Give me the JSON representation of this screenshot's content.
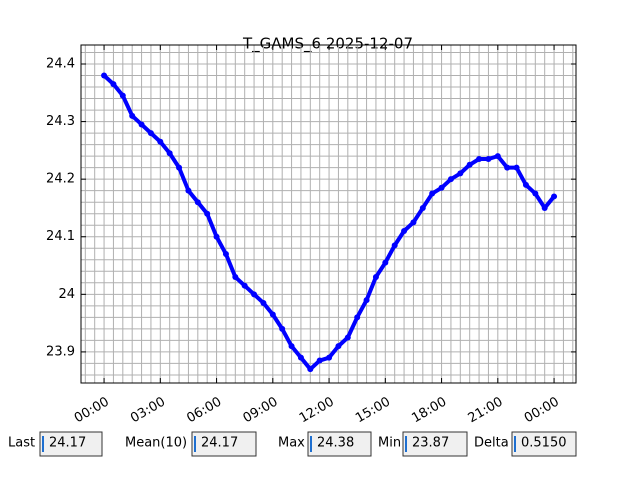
{
  "chart_data": {
    "type": "line",
    "title": "T_GAMS_6 2025-12-07",
    "x": [
      0,
      0.5,
      1,
      1.5,
      2,
      2.5,
      3,
      3.5,
      4,
      4.5,
      5,
      5.5,
      6,
      6.5,
      7,
      7.5,
      8,
      8.5,
      9,
      9.5,
      10,
      10.5,
      11,
      11.5,
      12,
      12.5,
      13,
      13.5,
      14,
      14.5,
      15,
      15.5,
      16,
      16.5,
      17,
      17.5,
      18,
      18.5,
      19,
      19.5,
      20,
      20.5,
      21,
      21.5,
      22,
      22.5,
      23,
      23.5,
      24
    ],
    "series": [
      {
        "color": "#0000ff",
        "values": [
          24.38,
          24.365,
          24.345,
          24.31,
          24.295,
          24.28,
          24.265,
          24.245,
          24.22,
          24.18,
          24.16,
          24.14,
          24.1,
          24.07,
          24.03,
          24.015,
          24.0,
          23.985,
          23.965,
          23.94,
          23.91,
          23.89,
          23.87,
          23.885,
          23.89,
          23.91,
          23.925,
          23.96,
          23.99,
          24.03,
          24.055,
          24.085,
          24.11,
          24.125,
          24.15,
          24.175,
          24.185,
          24.2,
          24.21,
          24.225,
          24.235,
          24.235,
          24.24,
          24.22,
          24.22,
          24.19,
          24.175,
          24.15,
          24.17
        ]
      }
    ],
    "xlim": [
      -1.23,
      25.17
    ],
    "xticks": [
      {
        "value": 0,
        "label": "00:00"
      },
      {
        "value": 3,
        "label": "03:00"
      },
      {
        "value": 6,
        "label": "06:00"
      },
      {
        "value": 9,
        "label": "09:00"
      },
      {
        "value": 12,
        "label": "12:00"
      },
      {
        "value": 15,
        "label": "15:00"
      },
      {
        "value": 18,
        "label": "18:00"
      },
      {
        "value": 21,
        "label": "21:00"
      },
      {
        "value": 24,
        "label": "00:00"
      }
    ],
    "xminorticks": [
      -1,
      -0.5,
      0,
      0.5,
      1,
      1.5,
      2,
      2.5,
      3,
      3.5,
      4,
      4.5,
      5,
      5.5,
      6,
      6.5,
      7,
      7.5,
      8,
      8.5,
      9,
      9.5,
      10,
      10.5,
      11,
      11.5,
      12,
      12.5,
      13,
      13.5,
      14,
      14.5,
      15,
      15.5,
      16,
      16.5,
      17,
      17.5,
      18,
      18.5,
      19,
      19.5,
      20,
      20.5,
      21,
      21.5,
      22,
      22.5,
      23,
      23.5,
      24,
      24.5,
      25
    ],
    "ylim": [
      23.846,
      24.433
    ],
    "yticks": [
      23.9,
      24.0,
      24.1,
      24.2,
      24.3,
      24.4
    ],
    "yminorticks": [
      23.86,
      23.88,
      23.9,
      23.92,
      23.94,
      23.96,
      23.98,
      24.0,
      24.02,
      24.04,
      24.06,
      24.08,
      24.1,
      24.12,
      24.14,
      24.16,
      24.18,
      24.2,
      24.22,
      24.24,
      24.26,
      24.28,
      24.3,
      24.32,
      24.34,
      24.36,
      24.38,
      24.4,
      24.42
    ],
    "grid": true
  },
  "fields": [
    {
      "label": "Last",
      "value": "24.17"
    },
    {
      "label": "Mean(10)",
      "value": "24.17"
    },
    {
      "label": "Max",
      "value": "24.38"
    },
    {
      "label": "Min",
      "value": "23.87"
    },
    {
      "label": "Delta",
      "value": "0.5150"
    }
  ]
}
